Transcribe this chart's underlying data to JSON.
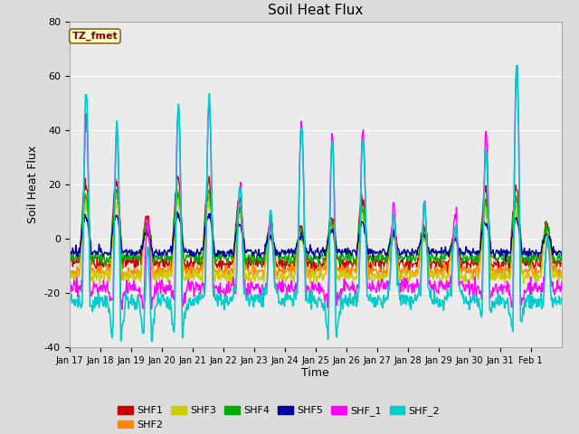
{
  "title": "Soil Heat Flux",
  "ylabel": "Soil Heat Flux",
  "xlabel": "Time",
  "ylim": [
    -40,
    80
  ],
  "annotation": "TZ_fmet",
  "annotation_color": "#8B0000",
  "annotation_bg": "#FFFFCC",
  "series": {
    "SHF1": {
      "color": "#CC0000",
      "lw": 1.0
    },
    "SHF2": {
      "color": "#FF8800",
      "lw": 1.0
    },
    "SHF3": {
      "color": "#CCCC00",
      "lw": 1.0
    },
    "SHF4": {
      "color": "#00AA00",
      "lw": 1.0
    },
    "SHF5": {
      "color": "#000099",
      "lw": 1.0
    },
    "SHF_1": {
      "color": "#FF00FF",
      "lw": 1.0
    },
    "SHF_2": {
      "color": "#00CCCC",
      "lw": 1.2
    }
  },
  "xtick_labels": [
    "Jan 17",
    "Jan 18",
    "Jan 19",
    "Jan 20",
    "Jan 21",
    "Jan 22",
    "Jan 23",
    "Jan 24",
    "Jan 25",
    "Jan 26",
    "Jan 27",
    "Jan 28",
    "Jan 29",
    "Jan 30",
    "Jan 31",
    "Feb 1"
  ],
  "ytick_labels": [
    -40,
    -20,
    0,
    20,
    40,
    60,
    80
  ],
  "bg_color": "#DCDCDC",
  "plot_bg": "#EBEBEB",
  "grid_color": "#FFFFFF"
}
